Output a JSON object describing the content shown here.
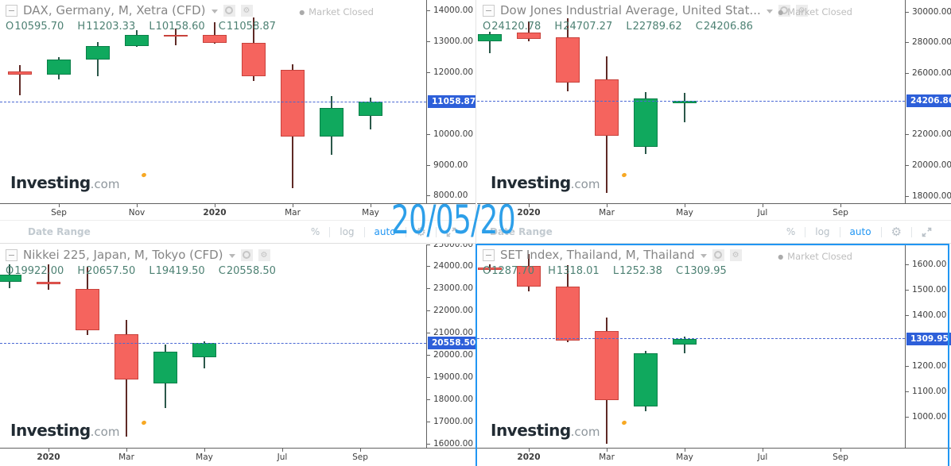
{
  "ui": {
    "toolbar": {
      "date_range": "Date Range",
      "percent": "%",
      "log": "log",
      "auto": "auto"
    },
    "ohlc_labels": [
      "O",
      "H",
      "L",
      "C"
    ],
    "brand": {
      "name": "Investing",
      "tld": ".com"
    },
    "overlay_date": "20/05/20",
    "colors": {
      "up_fill": "#10a95e",
      "up_border": "#0b7f49",
      "down_fill": "#f5645e",
      "down_border": "#c8423c",
      "wick_up": "#2b584a",
      "wick_down": "#5f2a26",
      "tag_bg": "#2d5fd9",
      "priceline": "#4a68d4",
      "overlay": "#2d9fe9",
      "accent_blue": "#2196f3",
      "ohlc_text": "#4d8173"
    }
  },
  "chart_data": [
    {
      "type": "candlestick",
      "title": "DAX, Germany, M, Xetra (CFD)",
      "market_closed": "Market Closed",
      "ohlc_display": [
        "10595.70",
        "11203.33",
        "10158.60",
        "11058.87"
      ],
      "last_close": 11058.87,
      "last_close_display": "11058.87",
      "ylim": [
        7768,
        14360
      ],
      "yticks": [
        14000,
        13000,
        12000,
        10000,
        9000,
        8000
      ],
      "xticks": [
        {
          "label": "Sep",
          "i": 1
        },
        {
          "label": "Nov",
          "i": 3
        },
        {
          "label": "2020",
          "i": 5,
          "year": true
        },
        {
          "label": "Mar",
          "i": 7
        },
        {
          "label": "May",
          "i": 9
        }
      ],
      "months": [
        "Aug 2019",
        "Sep 2019",
        "Oct 2019",
        "Nov 2019",
        "Dec 2019",
        "Jan 2020",
        "Feb 2020",
        "Mar 2020",
        "Apr 2020",
        "May 2020"
      ],
      "ohlc": [
        [
          12050,
          12253,
          11266,
          11939
        ],
        [
          11943,
          12494,
          11796,
          12428
        ],
        [
          12434,
          12986,
          11878,
          12866
        ],
        [
          12866,
          13374,
          12839,
          13236
        ],
        [
          13236,
          13425,
          12886,
          13180
        ],
        [
          13233,
          13640,
          12948,
          12982
        ],
        [
          12982,
          13795,
          11725,
          11890
        ],
        [
          12100,
          12270,
          8255,
          9935
        ],
        [
          9935,
          11235,
          9337,
          10861
        ],
        [
          10595.7,
          11203.33,
          10158.6,
          11058.87
        ]
      ]
    },
    {
      "type": "candlestick",
      "title": "Dow Jones Industrial Average, United Stat...",
      "market_closed": "Market Closed",
      "ohlc_display": [
        "24120.78",
        "24707.27",
        "22789.62",
        "24206.86"
      ],
      "last_close": 24206.86,
      "last_close_display": "24206.86",
      "ylim": [
        17536,
        30776
      ],
      "yticks": [
        30000,
        28000,
        26000,
        22000,
        20000,
        18000
      ],
      "xticks": [
        {
          "label": "2020",
          "i": 1,
          "year": true
        },
        {
          "label": "Mar",
          "i": 3
        },
        {
          "label": "May",
          "i": 5
        },
        {
          "label": "Jul",
          "i": 7
        },
        {
          "label": "Sep",
          "i": 9
        }
      ],
      "months": [
        "Dec 2019",
        "Jan 2020",
        "Feb 2020",
        "Mar 2020",
        "Apr 2020",
        "May 2020"
      ],
      "ohlc": [
        [
          28109,
          28701,
          27325,
          28538
        ],
        [
          28639,
          29374,
          28086,
          28256
        ],
        [
          28320,
          29568,
          24830,
          25409
        ],
        [
          25590,
          27102,
          18213,
          21917
        ],
        [
          21227,
          24765,
          20735,
          24345
        ],
        [
          24120.78,
          24707.27,
          22789.62,
          24206.86
        ]
      ]
    },
    {
      "type": "candlestick",
      "title": "Nikkei 225, Japan, M, Tokyo (CFD)",
      "market_closed": null,
      "ohlc_display": [
        "19922.00",
        "20657.50",
        "19419.50",
        "20558.50"
      ],
      "last_close": 20558.5,
      "last_close_display": "20558.50",
      "ylim": [
        15857,
        25000
      ],
      "yticks": [
        25000,
        24000,
        23000,
        22000,
        21000,
        20000,
        19000,
        18000,
        17000,
        16000
      ],
      "xticks": [
        {
          "label": "2020",
          "i": 1,
          "year": true
        },
        {
          "label": "Mar",
          "i": 3
        },
        {
          "label": "May",
          "i": 5
        },
        {
          "label": "Jul",
          "i": 7
        },
        {
          "label": "Sep",
          "i": 9
        }
      ],
      "months": [
        "Dec 2019",
        "Jan 2020",
        "Feb 2020",
        "Mar 2020",
        "Apr 2020",
        "May 2020"
      ],
      "ohlc": [
        [
          23320,
          24091,
          23045,
          23657
        ],
        [
          23320,
          24116,
          22950,
          23205
        ],
        [
          23000,
          23995,
          20916,
          21142
        ],
        [
          20950,
          21600,
          16358,
          18917
        ],
        [
          18740,
          20500,
          17646,
          20193
        ],
        [
          19922.0,
          20657.5,
          19419.5,
          20558.5
        ]
      ]
    },
    {
      "type": "candlestick",
      "title": "SET Index, Thailand, M, Thailand",
      "market_closed": "Market Closed",
      "ohlc_display": [
        "1287.70",
        "1318.01",
        "1252.38",
        "1309.95"
      ],
      "last_close": 1309.95,
      "last_close_display": "1309.95",
      "ylim": [
        881,
        1681
      ],
      "yticks": [
        1600,
        1500,
        1400,
        1200,
        1100,
        1000
      ],
      "xticks": [
        {
          "label": "2020",
          "i": 1,
          "year": true
        },
        {
          "label": "Mar",
          "i": 3
        },
        {
          "label": "May",
          "i": 5
        },
        {
          "label": "Jul",
          "i": 7
        },
        {
          "label": "Sep",
          "i": 9
        }
      ],
      "months": [
        "Dec 2019",
        "Jan 2020",
        "Feb 2020",
        "Mar 2020",
        "Apr 2020",
        "May 2020"
      ],
      "ohlc": [
        [
          1591,
          1604,
          1576,
          1580
        ],
        [
          1596,
          1645,
          1498,
          1514
        ],
        [
          1514,
          1600,
          1298,
          1303
        ],
        [
          1340,
          1393,
          897,
          1070
        ],
        [
          1043,
          1262,
          1025,
          1254
        ],
        [
          1287.7,
          1318.01,
          1252.38,
          1309.95
        ]
      ]
    }
  ]
}
